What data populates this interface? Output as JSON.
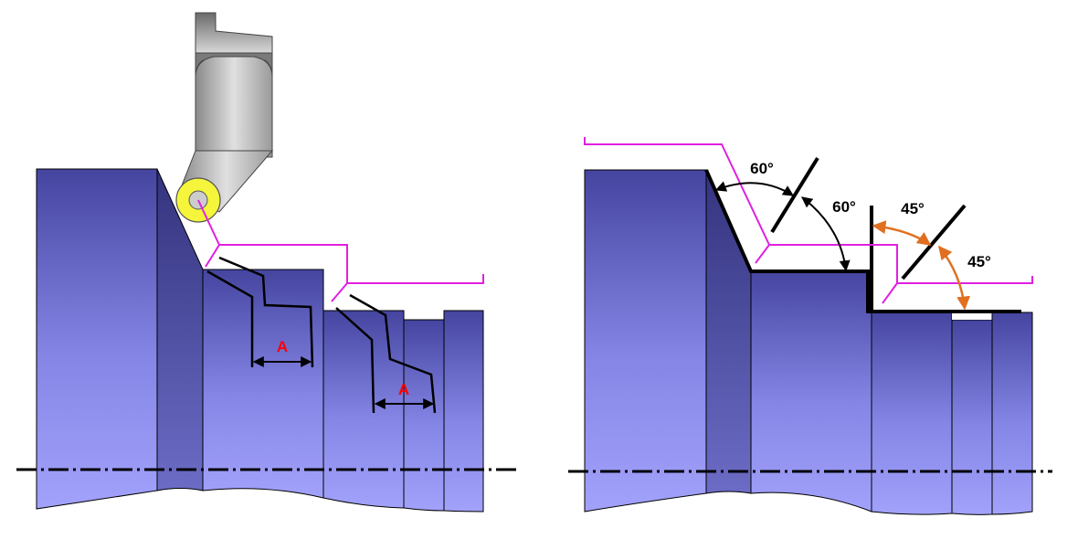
{
  "left_diagram": {
    "dimension_label_1": "A",
    "dimension_label_2": "A"
  },
  "right_diagram": {
    "angle_label_1": "60°",
    "angle_label_2": "60°",
    "angle_label_3": "45°",
    "angle_label_4": "45°"
  },
  "colors": {
    "workpiece_light": "#9c9cf8",
    "workpiece_dark": "#4a4aa8",
    "tool_path": "#e020e0",
    "insert": "#f5f53c",
    "dimension_text": "#ff0000",
    "angle_arrow_45": "#e07020",
    "outline": "#000000"
  }
}
